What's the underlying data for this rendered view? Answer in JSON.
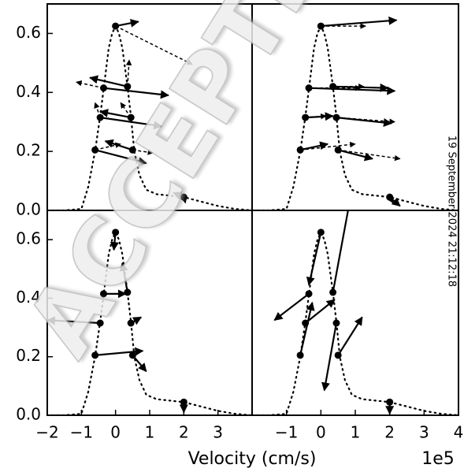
{
  "watermark": "ACCEPTED",
  "timestamp": "19 September 2024 21:12:18",
  "xlabel": "Velocity (cm/s)",
  "offset_label": "1e5",
  "chart_data": [
    {
      "type": "quiver",
      "panel": "top-left",
      "xlim": [
        -2,
        4
      ],
      "ylim": [
        0,
        0.7
      ],
      "yticks": [
        {
          "value": 0,
          "label": "0.0"
        },
        0.2,
        0.4,
        0.6
      ],
      "profile": {
        "x": [
          -2,
          -1.5,
          -1,
          -0.8,
          -0.6,
          -0.45,
          -0.35,
          -0.2,
          -0.1,
          0,
          0.1,
          0.2,
          0.35,
          0.45,
          0.55,
          0.7,
          0.9,
          1.2,
          1.6,
          2,
          2.5,
          3,
          3.5,
          4
        ],
        "y": [
          0,
          0,
          0.005,
          0.08,
          0.2,
          0.32,
          0.41,
          0.55,
          0.6,
          0.625,
          0.6,
          0.55,
          0.42,
          0.32,
          0.2,
          0.12,
          0.07,
          0.055,
          0.05,
          0.045,
          0.03,
          0.015,
          0.005,
          0
        ]
      },
      "x": [
        -0.6,
        -0.35,
        -0.45,
        0,
        0.35,
        0.45,
        0.5,
        2.0
      ],
      "y": [
        0.205,
        0.415,
        0.315,
        0.625,
        0.42,
        0.315,
        0.205,
        0.045
      ],
      "arrows": [
        {
          "style": "solid",
          "u": [
            1.5,
            1.9,
            1.8,
            0.67,
            -1.1,
            -0.9,
            -0.8,
            -0.3
          ],
          "v": [
            -0.045,
            -0.025,
            -0.03,
            0.015,
            0.03,
            0.02,
            0.03,
            0.015
          ]
        },
        {
          "style": "dashed",
          "u": [
            0.75,
            -0.8,
            -0.15,
            2.25,
            0.05,
            -0.3,
            0.6,
            0.05
          ],
          "v": [
            0.02,
            0.02,
            0.05,
            -0.13,
            0.09,
            0.05,
            -0.01,
            -0.02
          ]
        }
      ]
    },
    {
      "type": "quiver",
      "panel": "top-right",
      "xlim": [
        -2,
        4
      ],
      "ylim": [
        0,
        0.7
      ],
      "profile": {
        "x": [
          -2,
          -1.5,
          -1,
          -0.8,
          -0.6,
          -0.45,
          -0.35,
          -0.2,
          -0.1,
          0,
          0.1,
          0.2,
          0.35,
          0.45,
          0.55,
          0.7,
          0.9,
          1.2,
          1.6,
          2,
          2.5,
          3,
          3.5,
          4
        ],
        "y": [
          0,
          0,
          0.005,
          0.08,
          0.2,
          0.32,
          0.41,
          0.55,
          0.6,
          0.625,
          0.6,
          0.55,
          0.42,
          0.32,
          0.2,
          0.12,
          0.07,
          0.055,
          0.05,
          0.045,
          0.03,
          0.015,
          0.005,
          0
        ]
      },
      "x": [
        -0.6,
        -0.35,
        -0.45,
        0,
        0.35,
        0.45,
        0.5,
        2.0
      ],
      "y": [
        0.205,
        0.415,
        0.315,
        0.625,
        0.42,
        0.315,
        0.205,
        0.045
      ],
      "arrows": [
        {
          "style": "solid",
          "u": [
            0.8,
            2.5,
            0.8,
            2.2,
            1.6,
            1.6,
            1.0,
            0.3
          ],
          "v": [
            0.02,
            -0.01,
            0.005,
            0.02,
            -0.005,
            -0.02,
            -0.03,
            -0.03
          ]
        },
        {
          "style": "dashed",
          "u": [
            1.6,
            1.5,
            0.6,
            1.3,
            0.9,
            1.7,
            1.8,
            0.1
          ],
          "v": [
            0.02,
            0,
            0.005,
            0,
            0,
            -0.015,
            -0.03,
            -0.02
          ]
        }
      ]
    },
    {
      "type": "quiver",
      "panel": "bottom-left",
      "xlim": [
        -2,
        4
      ],
      "ylim": [
        0,
        0.7
      ],
      "yticks": [
        {
          "value": 0,
          "label": "0.0"
        },
        0.2,
        0.4,
        0.6
      ],
      "xticks": [
        {
          "value": -2,
          "label": "−2"
        },
        {
          "value": -1,
          "label": "−1"
        },
        0,
        1,
        2,
        3
      ],
      "profile": {
        "x": [
          -2,
          -1.5,
          -1,
          -0.8,
          -0.6,
          -0.45,
          -0.35,
          -0.2,
          -0.1,
          0,
          0.1,
          0.2,
          0.35,
          0.45,
          0.55,
          0.7,
          0.9,
          1.2,
          1.6,
          2,
          2.5,
          3,
          3.5,
          4
        ],
        "y": [
          0,
          0,
          0.005,
          0.08,
          0.2,
          0.32,
          0.41,
          0.55,
          0.6,
          0.625,
          0.6,
          0.55,
          0.42,
          0.32,
          0.2,
          0.12,
          0.07,
          0.055,
          0.05,
          0.045,
          0.03,
          0.015,
          0.005,
          0
        ]
      },
      "x": [
        -0.6,
        -0.35,
        -0.45,
        0,
        0.35,
        0.45,
        0.5,
        2.0
      ],
      "y": [
        0.205,
        0.415,
        0.315,
        0.625,
        0.42,
        0.315,
        0.205,
        0.045
      ],
      "arrows": [
        {
          "style": "solid",
          "u": [
            1.4,
            0.65,
            -1.55,
            -0.05,
            -0.15,
            0.3,
            0.4,
            0
          ],
          "v": [
            0.015,
            0,
            0.01,
            -0.06,
            0.1,
            0.02,
            -0.055,
            -0.035
          ]
        }
      ]
    },
    {
      "type": "quiver",
      "panel": "bottom-right",
      "xlim": [
        -2,
        4
      ],
      "ylim": [
        0,
        0.7
      ],
      "xticks": [
        {
          "value": -1,
          "label": "−1"
        },
        0,
        1,
        2,
        3,
        4
      ],
      "profile": {
        "x": [
          -2,
          -1.5,
          -1,
          -0.8,
          -0.6,
          -0.45,
          -0.35,
          -0.2,
          -0.1,
          0,
          0.1,
          0.2,
          0.35,
          0.45,
          0.55,
          0.7,
          0.9,
          1.2,
          1.6,
          2,
          2.5,
          3,
          3.5,
          4
        ],
        "y": [
          0,
          0,
          0.005,
          0.08,
          0.2,
          0.32,
          0.41,
          0.55,
          0.6,
          0.625,
          0.6,
          0.55,
          0.42,
          0.32,
          0.2,
          0.12,
          0.07,
          0.055,
          0.05,
          0.045,
          0.03,
          0.015,
          0.005,
          0
        ]
      },
      "x": [
        -0.6,
        -0.35,
        -0.45,
        0,
        0.35,
        0.45,
        0.5,
        2.0
      ],
      "y": [
        0.205,
        0.415,
        0.315,
        0.625,
        0.42,
        0.315,
        0.205,
        0.045
      ],
      "arrows": [
        {
          "style": "solid",
          "u": [
            0.35,
            -1.0,
            0.85,
            -0.35,
            0.55,
            -0.35,
            0.7,
            0
          ],
          "v": [
            0.18,
            -0.09,
            0.08,
            -0.18,
            0.35,
            -0.23,
            0.13,
            -0.04
          ]
        }
      ]
    }
  ]
}
